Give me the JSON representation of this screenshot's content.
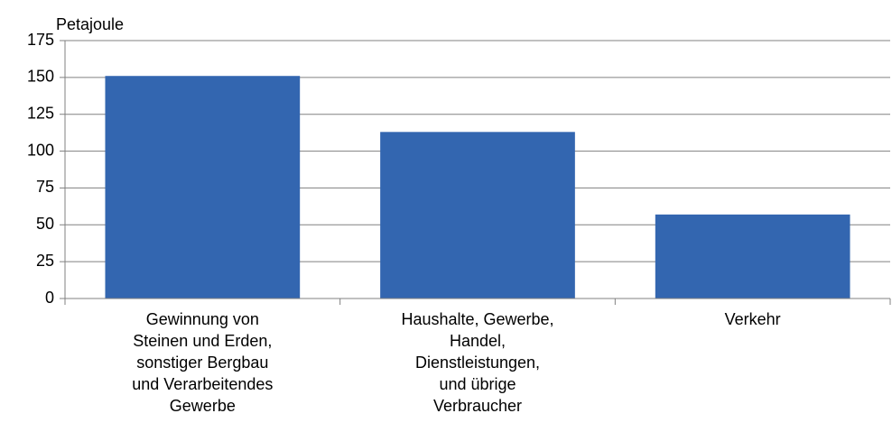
{
  "chart_data": {
    "type": "bar",
    "y_label": "Petajoule",
    "categories": [
      "Gewinnung von\nSteinen und Erden,\nsonstiger Bergbau\nund Verarbeitendes\nGewerbe",
      "Haushalte, Gewerbe,\nHandel,\nDienstleistungen,\nund übrige\nVerbraucher",
      "Verkehr"
    ],
    "values": [
      151,
      113,
      57
    ],
    "color": "#3366b0",
    "ylim": [
      0,
      175
    ],
    "yticks": [
      0,
      25,
      50,
      75,
      100,
      125,
      150,
      175
    ],
    "grid": true
  }
}
